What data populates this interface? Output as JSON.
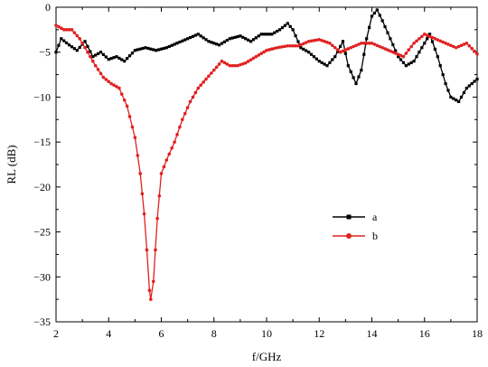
{
  "chart_data": {
    "type": "line",
    "xlabel": "f/GHz",
    "ylabel": "RL (dB)",
    "xlim": [
      2,
      18
    ],
    "ylim": [
      -35,
      0
    ],
    "xticks": [
      2,
      4,
      6,
      8,
      10,
      12,
      14,
      16,
      18
    ],
    "yticks": [
      0,
      -5,
      -10,
      -15,
      -20,
      -25,
      -30,
      -35
    ],
    "grid": false,
    "legend_position": "center-right",
    "series": [
      {
        "name": "a",
        "color": "#000000",
        "marker": "square",
        "x": [
          2.0,
          2.2,
          2.5,
          2.8,
          3.1,
          3.4,
          3.7,
          4.0,
          4.3,
          4.6,
          5.0,
          5.4,
          5.8,
          6.2,
          6.6,
          7.0,
          7.4,
          7.8,
          8.2,
          8.6,
          9.0,
          9.4,
          9.8,
          10.2,
          10.5,
          10.8,
          11.0,
          11.3,
          11.6,
          12.0,
          12.3,
          12.6,
          12.9,
          13.1,
          13.4,
          13.6,
          13.8,
          14.0,
          14.2,
          14.4,
          14.7,
          15.0,
          15.3,
          15.6,
          15.9,
          16.2,
          16.5,
          16.8,
          17.0,
          17.3,
          17.6,
          18.0
        ],
        "y": [
          -5.0,
          -3.5,
          -4.2,
          -4.8,
          -3.8,
          -5.5,
          -5.0,
          -5.8,
          -5.5,
          -6.0,
          -4.8,
          -4.5,
          -4.8,
          -4.5,
          -4.0,
          -3.5,
          -3.0,
          -3.8,
          -4.2,
          -3.5,
          -3.2,
          -3.8,
          -3.0,
          -3.0,
          -2.5,
          -1.8,
          -2.5,
          -4.5,
          -5.0,
          -6.0,
          -6.5,
          -5.5,
          -3.8,
          -6.5,
          -8.5,
          -7.0,
          -3.5,
          -1.0,
          -0.3,
          -1.5,
          -3.5,
          -5.5,
          -6.5,
          -6.0,
          -4.5,
          -3.0,
          -5.5,
          -8.5,
          -10.0,
          -10.5,
          -9.0,
          -8.0
        ]
      },
      {
        "name": "b",
        "color": "#e02020",
        "marker": "circle",
        "x": [
          2.0,
          2.3,
          2.6,
          2.9,
          3.2,
          3.5,
          3.8,
          4.1,
          4.4,
          4.7,
          5.0,
          5.2,
          5.35,
          5.45,
          5.55,
          5.6,
          5.7,
          5.85,
          6.0,
          6.2,
          6.5,
          6.8,
          7.1,
          7.4,
          7.7,
          8.0,
          8.3,
          8.6,
          8.9,
          9.2,
          9.6,
          10.0,
          10.4,
          10.8,
          11.2,
          11.6,
          12.0,
          12.4,
          12.8,
          13.2,
          13.6,
          14.0,
          14.4,
          14.8,
          15.2,
          15.6,
          16.0,
          16.4,
          16.8,
          17.2,
          17.6,
          18.0
        ],
        "y": [
          -2.0,
          -2.5,
          -2.5,
          -3.5,
          -5.0,
          -6.5,
          -7.8,
          -8.5,
          -9.0,
          -11.0,
          -14.5,
          -18.5,
          -23.0,
          -27.0,
          -31.5,
          -32.5,
          -30.5,
          -23.5,
          -18.5,
          -17.0,
          -15.0,
          -12.5,
          -10.5,
          -9.0,
          -8.0,
          -7.0,
          -6.0,
          -6.5,
          -6.5,
          -6.2,
          -5.5,
          -4.8,
          -4.5,
          -4.3,
          -4.3,
          -3.8,
          -3.6,
          -4.0,
          -5.0,
          -4.5,
          -4.0,
          -4.0,
          -4.5,
          -5.0,
          -5.5,
          -4.0,
          -3.0,
          -3.5,
          -4.0,
          -4.5,
          -4.0,
          -5.2
        ]
      }
    ]
  }
}
